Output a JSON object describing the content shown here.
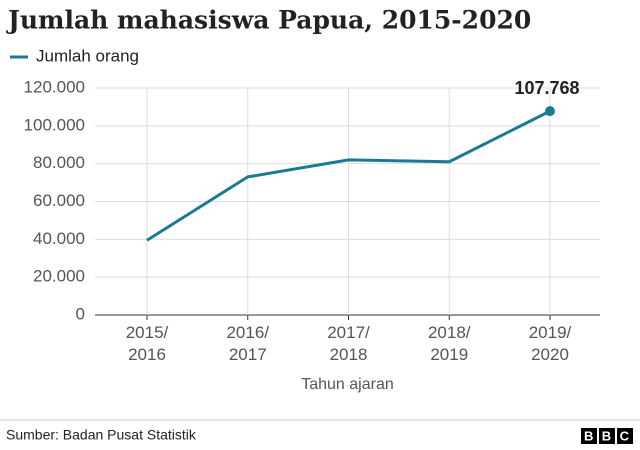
{
  "chart_data": {
    "type": "line",
    "title": "Jumlah mahasiswa Papua, 2015-2020",
    "x_label": "Tahun ajaran",
    "categories": [
      "2015/\n2016",
      "2016/\n2017",
      "2017/\n2018",
      "2018/\n2019",
      "2019/\n2020"
    ],
    "series": [
      {
        "name": "Jumlah orang",
        "color": "#1a7a94",
        "values": [
          39500,
          73000,
          82000,
          81000,
          107768
        ],
        "value_labels": [
          null,
          null,
          null,
          null,
          "107.768"
        ]
      }
    ],
    "ylim": [
      0,
      120000
    ],
    "yticks": [
      0,
      {
        "value": 20000,
        "label": "20.000"
      },
      {
        "value": 40000,
        "label": "40.000"
      },
      {
        "value": 60000,
        "label": "60.000"
      },
      {
        "value": 80000,
        "label": "80.000"
      },
      {
        "value": 100000,
        "label": "100.000"
      },
      {
        "value": 120000,
        "label": "120.000"
      }
    ],
    "grid": true,
    "legend": "top-left"
  },
  "footer": {
    "source": "Sumber: Badan Pusat Statistik",
    "logo": "BBC"
  }
}
